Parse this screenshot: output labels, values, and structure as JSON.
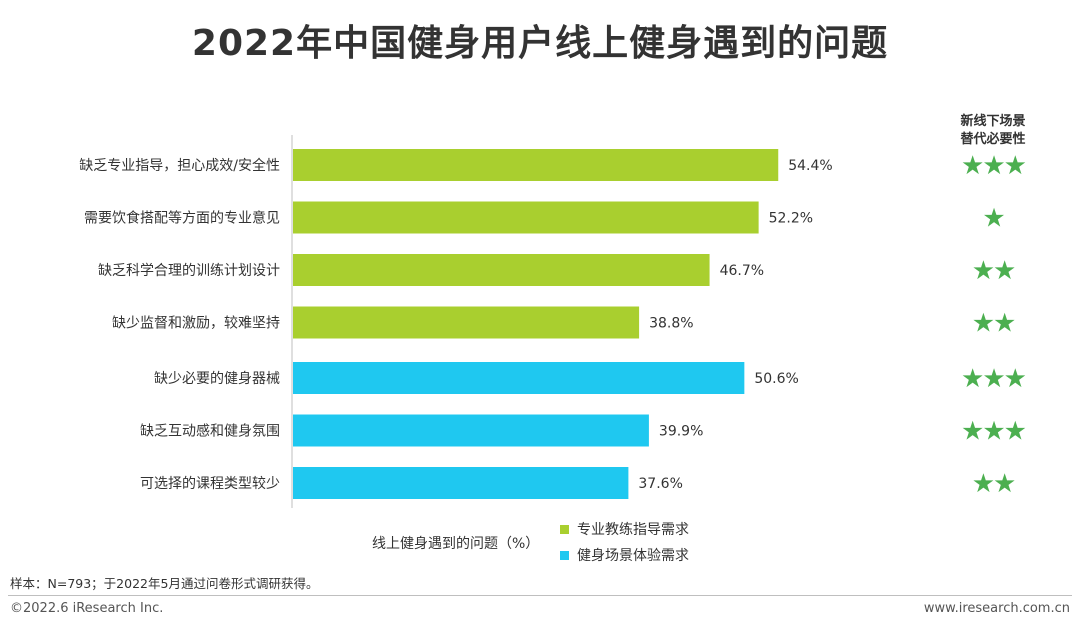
{
  "title": "2022年中国健身用户线上健身遇到的问题",
  "right_header": {
    "line1": "新线下场景",
    "line2": "替代必要性"
  },
  "chart_data": {
    "type": "bar",
    "orientation": "horizontal",
    "title": "2022年中国健身用户线上健身遇到的问题",
    "xlabel": "线上健身遇到的问题（%）",
    "xlim": [
      0,
      60
    ],
    "value_suffix": "%",
    "series": [
      {
        "name": "专业教练指导需求",
        "color": "#a9cf2f"
      },
      {
        "name": "健身场景体验需求",
        "color": "#1fc8f0"
      }
    ],
    "bars": [
      {
        "category": "缺乏专业指导，担心成效/安全性",
        "value": 54.4,
        "series": 0,
        "stars": 3
      },
      {
        "category": "需要饮食搭配等方面的专业意见",
        "value": 52.2,
        "series": 0,
        "stars": 1
      },
      {
        "category": "缺乏科学合理的训练计划设计",
        "value": 46.7,
        "series": 0,
        "stars": 2
      },
      {
        "category": "缺少监督和激励，较难坚持",
        "value": 38.8,
        "series": 0,
        "stars": 2
      },
      {
        "category": "缺少必要的健身器械",
        "value": 50.6,
        "series": 1,
        "stars": 3
      },
      {
        "category": "缺乏互动感和健身氛围",
        "value": 39.9,
        "series": 1,
        "stars": 3
      },
      {
        "category": "可选择的课程类型较少",
        "value": 37.6,
        "series": 1,
        "stars": 2
      }
    ],
    "star_color": "#4caf50",
    "star_glyph": "★"
  },
  "footnote": "样本：N=793；于2022年5月通过问卷形式调研获得。",
  "footer": {
    "left": "©2022.6 iResearch Inc.",
    "right": "www.iresearch.com.cn"
  }
}
